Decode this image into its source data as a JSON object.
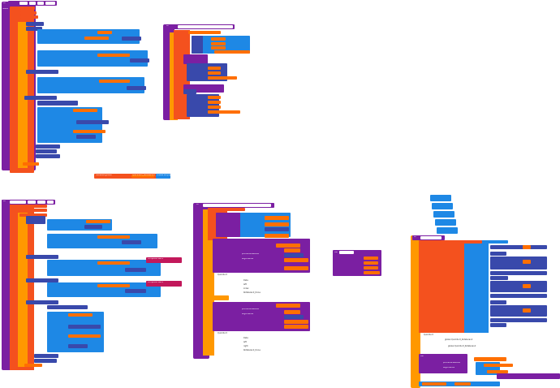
{
  "colors": {
    "procedure": "#7B1FA2",
    "variable": "#FF6F00",
    "text": "#B71C1C",
    "text_pink": "#C2185B",
    "list": "#1E88E5",
    "math": "#3949AB",
    "control": "#FF9800",
    "local": "#F4511E",
    "logic": "#0288D1"
  },
  "blocks": {
    "b1_title": "to",
    "b1_result": "result",
    "b2_title": "to",
    "b3_title": "to",
    "b4_title": "to",
    "b5_title": "to",
    "local_pill_left": "initialize global",
    "local_pill_mid": "QuickSort_Rotaterand",
    "local_pill_right": "create empty list",
    "b4_call": "call",
    "b5_call": "call",
    "compare_label_1": "compare items",
    "compare_label_2": "compare items"
  },
  "b4_texts": {
    "procedure_name": "procedureName",
    "arguments": "arguments",
    "quicksort": "QuickSort",
    "data": "Data",
    "left": "left",
    "index": "index",
    "right": "right",
    "rotate": "Rotaterand_Done"
  },
  "b5_texts": {
    "quicksort": "QuickSort",
    "global_a": "global QuickSort_Rotaterand",
    "global_b": "global QuickSort_Rotaterand",
    "procedure_name": "procedureName",
    "arguments": "arguments"
  }
}
